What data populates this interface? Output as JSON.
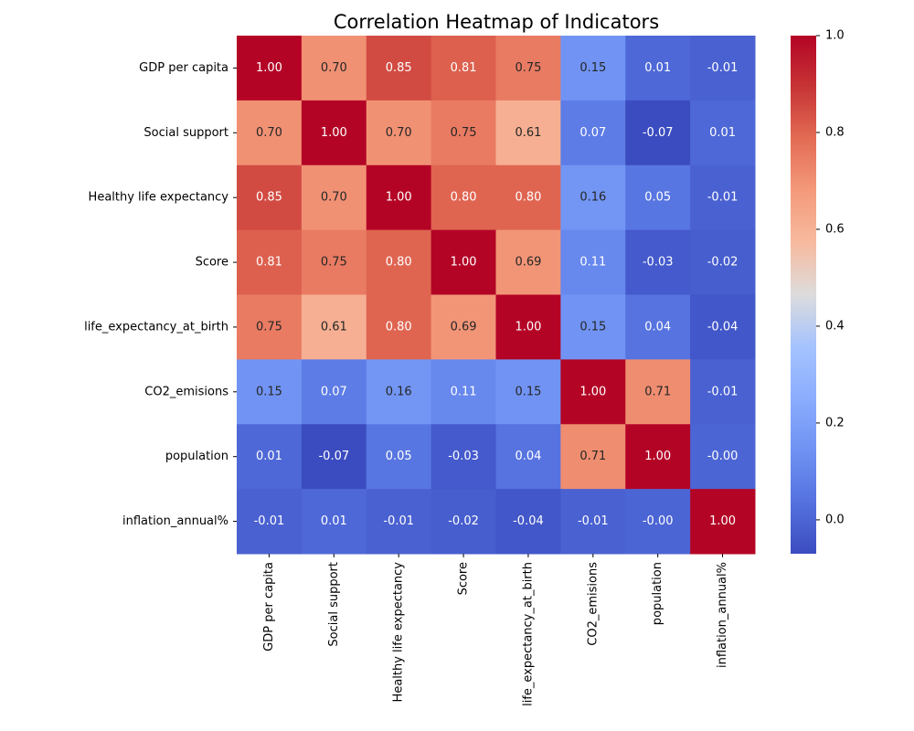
{
  "chart_data": {
    "type": "heatmap",
    "title": "Correlation Heatmap of Indicators",
    "x_labels": [
      "GDP per capita",
      "Social support",
      "Healthy life expectancy",
      "Score",
      "life_expectancy_at_birth",
      "CO2_emisions",
      "population",
      "inflation_annual%"
    ],
    "y_labels": [
      "GDP per capita",
      "Social support",
      "Healthy life expectancy",
      "Score",
      "life_expectancy_at_birth",
      "CO2_emisions",
      "population",
      "inflation_annual%"
    ],
    "values": [
      [
        1.0,
        0.7,
        0.85,
        0.81,
        0.75,
        0.15,
        0.01,
        -0.01
      ],
      [
        0.7,
        1.0,
        0.7,
        0.75,
        0.61,
        0.07,
        -0.07,
        0.01
      ],
      [
        0.85,
        0.7,
        1.0,
        0.8,
        0.8,
        0.16,
        0.05,
        -0.01
      ],
      [
        0.81,
        0.75,
        0.8,
        1.0,
        0.69,
        0.11,
        -0.03,
        -0.02
      ],
      [
        0.75,
        0.61,
        0.8,
        0.69,
        1.0,
        0.15,
        0.04,
        -0.04
      ],
      [
        0.15,
        0.07,
        0.16,
        0.11,
        0.15,
        1.0,
        0.71,
        -0.01
      ],
      [
        0.01,
        -0.07,
        0.05,
        -0.03,
        0.04,
        0.71,
        1.0,
        -0.0
      ],
      [
        -0.01,
        0.01,
        -0.01,
        -0.02,
        -0.04,
        -0.01,
        -0.0,
        1.0
      ]
    ],
    "value_labels": [
      [
        "1.00",
        "0.70",
        "0.85",
        "0.81",
        "0.75",
        "0.15",
        "0.01",
        "-0.01"
      ],
      [
        "0.70",
        "1.00",
        "0.70",
        "0.75",
        "0.61",
        "0.07",
        "-0.07",
        "0.01"
      ],
      [
        "0.85",
        "0.70",
        "1.00",
        "0.80",
        "0.80",
        "0.16",
        "0.05",
        "-0.01"
      ],
      [
        "0.81",
        "0.75",
        "0.80",
        "1.00",
        "0.69",
        "0.11",
        "-0.03",
        "-0.02"
      ],
      [
        "0.75",
        "0.61",
        "0.80",
        "0.69",
        "1.00",
        "0.15",
        "0.04",
        "-0.04"
      ],
      [
        "0.15",
        "0.07",
        "0.16",
        "0.11",
        "0.15",
        "1.00",
        "0.71",
        "-0.01"
      ],
      [
        "0.01",
        "-0.07",
        "0.05",
        "-0.03",
        "0.04",
        "0.71",
        "1.00",
        "-0.00"
      ],
      [
        "-0.01",
        "0.01",
        "-0.01",
        "-0.02",
        "-0.04",
        "-0.01",
        "-0.00",
        "1.00"
      ]
    ],
    "colorbar": {
      "colormap": "coolwarm",
      "range": [
        -0.07,
        1.0
      ],
      "ticks": [
        0.0,
        0.2,
        0.4,
        0.6,
        0.8,
        1.0
      ],
      "tick_labels": [
        "0.0",
        "0.2",
        "0.4",
        "0.6",
        "0.8",
        "1.0"
      ]
    },
    "annotations_shown": true,
    "grid": false,
    "colors": {
      "annotation_dark_text": "#262626",
      "annotation_light_text": "#ffffff"
    }
  }
}
